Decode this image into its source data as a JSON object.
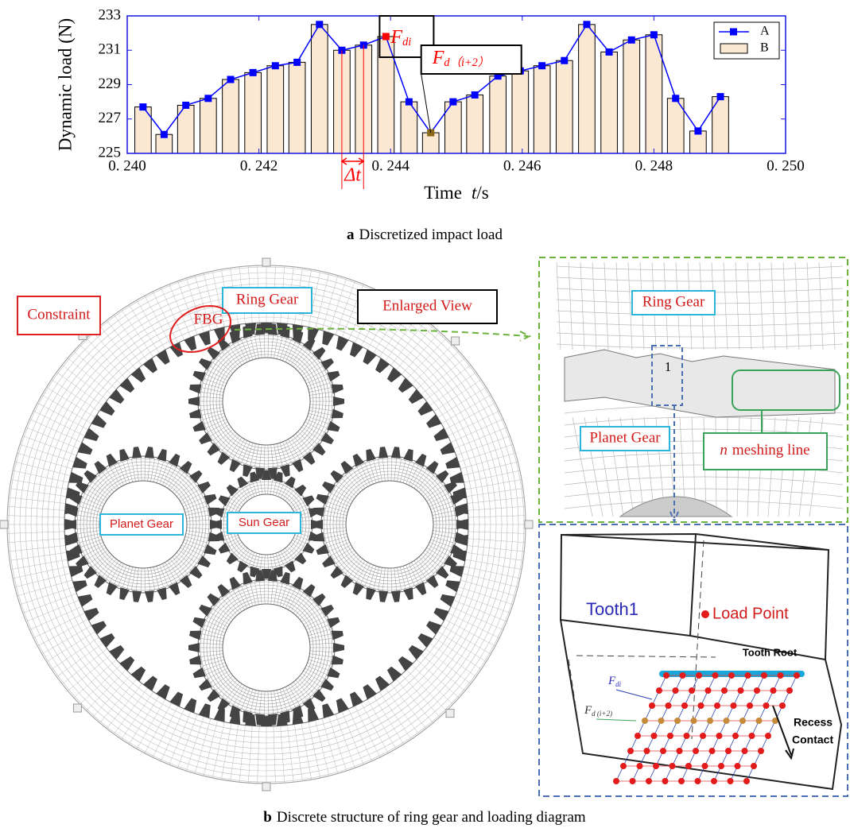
{
  "chart_data": {
    "type": "combo",
    "ylabel": "Dynamic load (N)",
    "xlabel": "Time",
    "xlabel_var": "t",
    "xlabel_unit": "/s",
    "x": [
      0.24024,
      0.24056,
      0.24089,
      0.24123,
      0.24157,
      0.24191,
      0.24225,
      0.24258,
      0.24292,
      0.24326,
      0.24359,
      0.24393,
      0.24428,
      0.24461,
      0.24495,
      0.24528,
      0.24563,
      0.24597,
      0.2463,
      0.24664,
      0.24698,
      0.24732,
      0.24766,
      0.248,
      0.24833,
      0.24867,
      0.24901
    ],
    "series": [
      {
        "name": "A",
        "type": "line",
        "color": "#0000ff",
        "values": [
          227.7,
          226.1,
          227.8,
          228.2,
          229.3,
          229.7,
          230.1,
          230.3,
          232.5,
          231.0,
          231.3,
          231.8,
          228.0,
          226.2,
          228.0,
          228.4,
          229.5,
          229.8,
          230.1,
          230.4,
          232.5,
          230.9,
          231.6,
          231.9,
          228.2,
          226.3,
          228.3
        ]
      },
      {
        "name": "B",
        "type": "bar",
        "color": "#fbe8d3",
        "values": [
          227.7,
          226.1,
          227.8,
          228.2,
          229.3,
          229.7,
          230.1,
          230.3,
          232.5,
          231.0,
          231.3,
          231.8,
          228.0,
          226.2,
          228.0,
          228.4,
          229.5,
          229.8,
          230.1,
          230.4,
          232.5,
          230.9,
          231.6,
          231.9,
          228.2,
          226.3,
          228.3
        ]
      }
    ],
    "xlim": [
      0.24,
      0.25
    ],
    "xticks": [
      {
        "value": 0.24,
        "label": "0. 240"
      },
      {
        "value": 0.242,
        "label": "0. 242"
      },
      {
        "value": 0.244,
        "label": "0. 244"
      },
      {
        "value": 0.246,
        "label": "0. 246"
      },
      {
        "value": 0.248,
        "label": "0. 248"
      },
      {
        "value": 0.25,
        "label": "0. 250"
      }
    ],
    "ylim": [
      225,
      233
    ],
    "yticks": [
      225,
      227,
      229,
      231,
      233
    ],
    "legend": "upper right",
    "highlights": [
      {
        "index": 11,
        "color": "#ff0000"
      },
      {
        "index": 13,
        "color": "#8b6914"
      }
    ],
    "annotations": [
      {
        "text": "F",
        "sub": "di"
      },
      {
        "text": "F",
        "sub": "d（i+2）"
      },
      {
        "text": "Δt"
      }
    ]
  },
  "captions": [
    {
      "label": "a",
      "text": "Discretized impact load"
    },
    {
      "label": "b",
      "text": "Discrete structure of ring gear and loading diagram"
    }
  ],
  "assembly": {
    "ring_gear": "Ring Gear",
    "enlarged_view": "Enlarged View",
    "constraint": "Constraint",
    "fbg": "FBG",
    "planet_gear": "Planet Gear",
    "sun_gear": "Sun Gear"
  },
  "enlarged": {
    "ring_gear": "Ring Gear",
    "tooth_number": "1",
    "planet_gear": "Planet Gear",
    "meshing_var": "n",
    "meshing_text": "meshing line"
  },
  "tooth": {
    "name": "Tooth1",
    "load_point": "Load Point",
    "tooth_root": "Tooth Root",
    "f_di": {
      "text": "F",
      "sub": "di"
    },
    "f_d": {
      "text": "F",
      "sub": "d (i+2)"
    },
    "recess": "Recess",
    "contact": "Contact"
  }
}
